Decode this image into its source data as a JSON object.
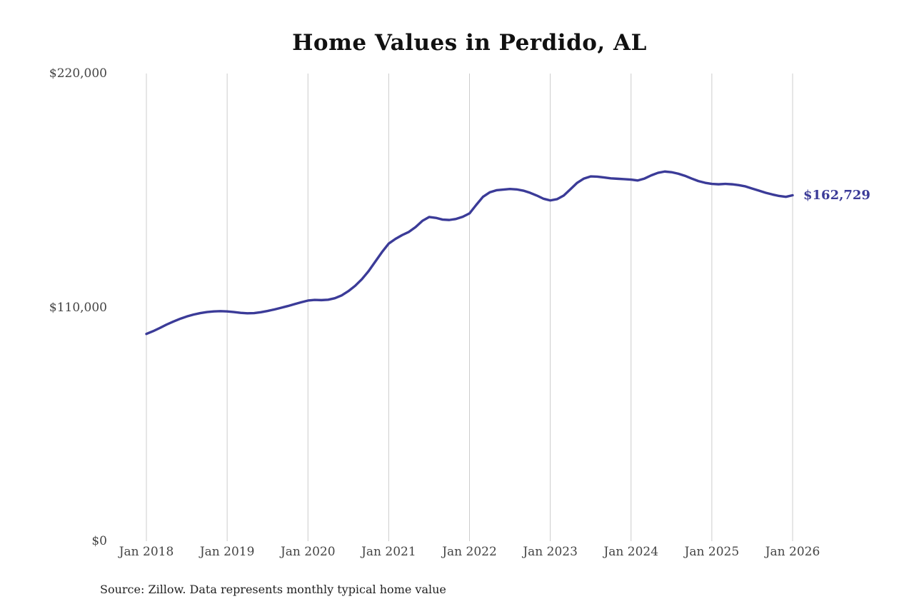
{
  "title": "Home Values in Perdido, AL",
  "source_note": "Source: Zillow. Data represents monthly typical home value",
  "chart_data": {
    "type": "line",
    "title": "Home Values in Perdido, AL",
    "ylabel": "",
    "xlabel": "",
    "ylim": [
      0,
      220000
    ],
    "grid": "vertical-only",
    "line_color": "#3b3b98",
    "grid_color": "#cccccc",
    "end_label": "$162,729",
    "latest_value": 162729,
    "y_ticks": [
      {
        "value": 0,
        "label": "$0"
      },
      {
        "value": 110000,
        "label": "$110,000"
      },
      {
        "value": 220000,
        "label": "$220,000"
      }
    ],
    "x_ticks": [
      "Jan 2018",
      "Jan 2019",
      "Jan 2020",
      "Jan 2021",
      "Jan 2022",
      "Jan 2023",
      "Jan 2024",
      "Jan 2025",
      "Jan 2026"
    ],
    "series": [
      {
        "name": "Monthly typical home value",
        "start": "2018-01",
        "interval": "monthly",
        "values": [
          97500,
          98800,
          100300,
          101900,
          103300,
          104600,
          105700,
          106600,
          107300,
          107800,
          108100,
          108200,
          108100,
          107800,
          107400,
          107200,
          107300,
          107700,
          108300,
          109000,
          109800,
          110600,
          111500,
          112400,
          113200,
          113500,
          113400,
          113600,
          114300,
          115600,
          117600,
          120100,
          123200,
          127000,
          131500,
          136000,
          140000,
          142200,
          144000,
          145500,
          147800,
          150700,
          152500,
          152100,
          151300,
          151100,
          151600,
          152600,
          154200,
          158200,
          162000,
          164100,
          165100,
          165400,
          165700,
          165500,
          164900,
          163900,
          162600,
          161100,
          160300,
          160900,
          162600,
          165600,
          168600,
          170600,
          171600,
          171500,
          171100,
          170700,
          170500,
          170300,
          170100,
          169700,
          170600,
          172100,
          173300,
          173900,
          173600,
          172900,
          171900,
          170600,
          169400,
          168600,
          168100,
          167900,
          168100,
          167900,
          167500,
          166900,
          165900,
          164900,
          163900,
          163100,
          162400,
          162000,
          162729
        ]
      }
    ]
  }
}
